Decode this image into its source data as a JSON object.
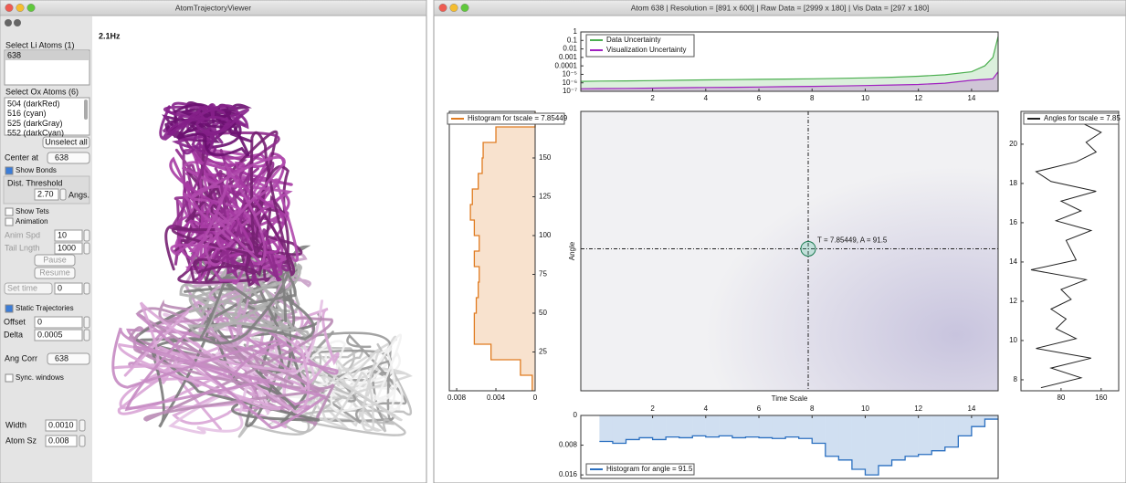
{
  "left_window": {
    "title": "AtomTrajectoryViewer",
    "rate": "2.1Hz",
    "sidebar": {
      "li_label": "Select Li Atoms (1)",
      "li_atoms": [
        "638"
      ],
      "ox_label": "Select Ox Atoms (6)",
      "ox_atoms": [
        "504 (darkRed)",
        "516 (cyan)",
        "525 (darkGray)",
        "552 (darkCyan)"
      ],
      "unselect": "Unselect all",
      "center_label": "Center at",
      "center_value": "638",
      "show_bonds": "Show Bonds",
      "dist_label": "Dist. Threshold",
      "dist_value": "2.70",
      "dist_unit": "Angs.",
      "show_tets": "Show Tets",
      "animation": "Animation",
      "anim_spd_label": "Anim Spd",
      "anim_spd_value": "10",
      "tail_label": "Tail Lngth",
      "tail_value": "1000",
      "pause": "Pause",
      "resume": "Resume",
      "set_time_label": "Set time",
      "set_time_value": "0",
      "static": "Static Trajectories",
      "offset_label": "Offset",
      "offset_value": "0",
      "delta_label": "Delta",
      "delta_value": "0.0005",
      "ang_corr_label": "Ang Corr",
      "ang_corr_value": "638",
      "sync": "Sync. windows",
      "width_label": "Width",
      "width_value": "0.0010",
      "atom_sz_label": "Atom Sz",
      "atom_sz_value": "0.008"
    }
  },
  "right_window": {
    "title": "Atom 638 | Resolution = [891 x 600] | Raw Data = [2999 x 180] | Vis Data = [297 x 180]",
    "uncertainty": {
      "type": "line",
      "log_y": true,
      "legend": "top-left",
      "x": [
        -0.7,
        0,
        1,
        2,
        3,
        4,
        5,
        6,
        7,
        8,
        9,
        10,
        11,
        12,
        13,
        14,
        14.5,
        14.8,
        15
      ],
      "series": [
        {
          "name": "Data Uncertainty",
          "color": "#4caf50",
          "values": [
            1.5e-06,
            1.6e-06,
            1.7e-06,
            1.8e-06,
            2e-06,
            2.2e-06,
            2.4e-06,
            2.6e-06,
            2.8e-06,
            3e-06,
            3.4e-06,
            3.8e-06,
            4.5e-06,
            6e-06,
            9e-06,
            2e-05,
            0.0001,
            0.001,
            0.3
          ]
        },
        {
          "name": "Visualization Uncertainty",
          "color": "#a020c0",
          "values": [
            2e-07,
            2.1e-07,
            2.2e-07,
            2.4e-07,
            2.6e-07,
            2.8e-07,
            3e-07,
            3.2e-07,
            3.5e-07,
            3.8e-07,
            4.2e-07,
            4.8e-07,
            5.5e-07,
            6.5e-07,
            9e-07,
            2e-06,
            2.5e-06,
            3e-06,
            2e-05
          ]
        }
      ],
      "xlim": [
        -0.7,
        15
      ],
      "ylim": [
        1e-07,
        1
      ],
      "xticks": [
        2,
        4,
        6,
        8,
        10,
        12,
        14
      ],
      "yticks": [
        1,
        0.1,
        0.01,
        0.001,
        0.0001,
        {
          "value": 1e-05,
          "label": "10⁻⁵"
        },
        {
          "value": 1e-06,
          "label": "10⁻⁶"
        },
        {
          "value": 1e-07,
          "label": "10⁻⁷"
        }
      ]
    },
    "heatmap": {
      "type": "heatmap",
      "x_label": "Time Scale",
      "y_label": "Angle",
      "annotation": "T = 7.85449, A = 91.5",
      "cursor": {
        "x": 7.85449,
        "y": 91.5
      },
      "xlim": [
        -0.7,
        15
      ],
      "ylim": [
        0,
        180
      ]
    },
    "tscale_histogram": {
      "type": "histogram",
      "legend": "Histogram for tscale = 7.85449",
      "color": "#e07b20",
      "bins": [
        0,
        10,
        20,
        30,
        40,
        50,
        60,
        70,
        80,
        90,
        100,
        110,
        120,
        130,
        140,
        150,
        160,
        170,
        180
      ],
      "values": [
        0.0003,
        0.0015,
        0.0045,
        0.0062,
        0.0062,
        0.006,
        0.0058,
        0.0057,
        0.0062,
        0.0057,
        0.0062,
        0.0066,
        0.0064,
        0.0058,
        0.0054,
        0.0053,
        0.004,
        0
      ],
      "xlim": [
        0.00875,
        0
      ],
      "ylim": [
        0,
        180
      ],
      "xticks": [
        0.008,
        0.004,
        0
      ],
      "yticks": [
        25,
        50,
        75,
        100,
        125,
        150
      ]
    },
    "angles_line": {
      "type": "line",
      "legend": "Angles for tscale = 7.85",
      "color": "#222222",
      "tscale": [
        7.6,
        8.1,
        8.6,
        9.1,
        9.6,
        10.1,
        10.6,
        11.1,
        11.6,
        12.1,
        12.6,
        13.1,
        13.6,
        14.1,
        14.6,
        15.1,
        15.6,
        16.1,
        16.6,
        17.1,
        17.6,
        18.1,
        18.6,
        19.1,
        19.6,
        20.1,
        20.6,
        21.1
      ],
      "values": [
        40,
        120,
        60,
        140,
        30,
        110,
        70,
        90,
        60,
        100,
        80,
        130,
        20,
        110,
        100,
        90,
        140,
        70,
        120,
        80,
        150,
        60,
        30,
        110,
        150,
        130,
        160,
        120
      ],
      "xlim": [
        0,
        195
      ],
      "ylim": [
        7.44,
        21.67
      ],
      "xticks": [
        80,
        160
      ],
      "yticks": [
        8,
        10,
        12,
        14,
        16,
        18,
        20
      ]
    },
    "angle_histogram": {
      "type": "histogram",
      "legend": "Histogram for angle = 91.5",
      "color": "#2a6fc0",
      "bins": [
        0,
        0.5,
        1,
        1.5,
        2,
        2.5,
        3,
        3.5,
        4,
        4.5,
        5,
        5.5,
        6,
        6.5,
        7,
        7.5,
        8,
        8.5,
        9,
        9.5,
        10,
        10.5,
        11,
        11.5,
        12,
        12.5,
        13,
        13.5,
        14,
        14.5,
        15
      ],
      "values": [
        0.007,
        0.0075,
        0.0065,
        0.006,
        0.0065,
        0.0058,
        0.006,
        0.0055,
        0.0058,
        0.0055,
        0.006,
        0.0058,
        0.006,
        0.0062,
        0.0058,
        0.0062,
        0.0075,
        0.011,
        0.012,
        0.0145,
        0.016,
        0.0135,
        0.012,
        0.011,
        0.0105,
        0.0095,
        0.0085,
        0.0055,
        0.003,
        0.001
      ],
      "xlim": [
        -0.7,
        15
      ],
      "ylim": [
        0,
        0.0172
      ],
      "xticks": [
        2,
        4,
        6,
        8,
        10,
        12,
        14
      ],
      "yticks": [
        0,
        0.008,
        0.016
      ]
    }
  }
}
